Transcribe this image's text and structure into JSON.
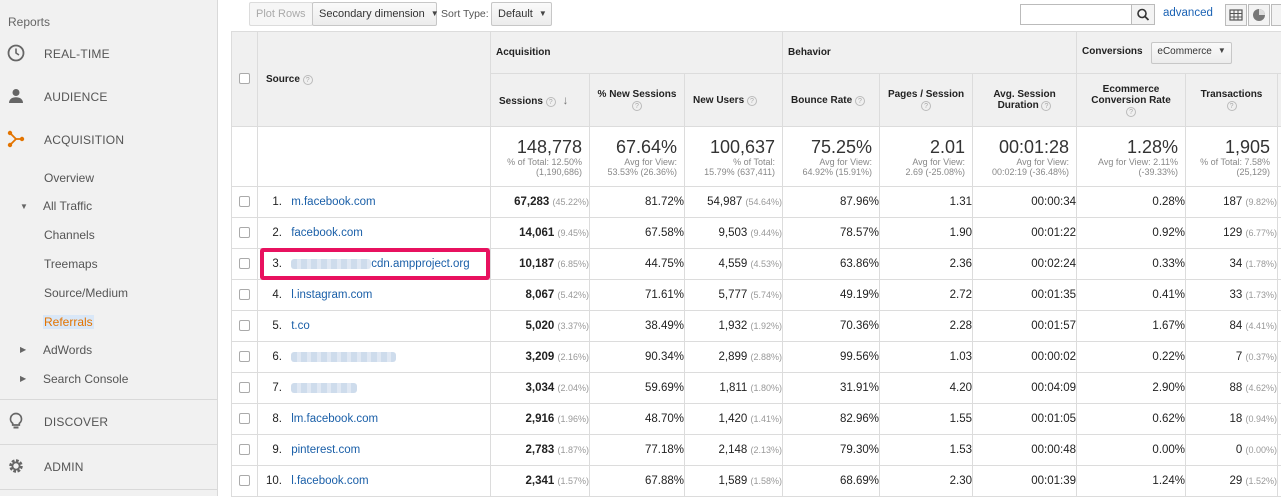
{
  "sidebar": {
    "reports_label": "Reports",
    "sections": [
      {
        "label": "REAL-TIME",
        "icon": "clock-icon"
      },
      {
        "label": "AUDIENCE",
        "icon": "person-icon"
      },
      {
        "label": "ACQUISITION",
        "icon": "acquisition-icon"
      }
    ],
    "acquisition_items": {
      "overview": "Overview",
      "all_traffic": "All Traffic",
      "channels": "Channels",
      "treemaps": "Treemaps",
      "source_medium": "Source/Medium",
      "referrals": "Referrals",
      "adwords": "AdWords",
      "search_console": "Search Console"
    },
    "discover": "DISCOVER",
    "admin": "ADMIN"
  },
  "toolbar": {
    "plot_rows": "Plot Rows",
    "secondary_dimension": "Secondary dimension",
    "sort_type_label": "Sort Type:",
    "sort_type_value": "Default",
    "search_value": "",
    "advanced": "advanced"
  },
  "table": {
    "groups": {
      "acquisition": "Acquisition",
      "behavior": "Behavior",
      "conversions": "Conversions",
      "conversions_select": "eCommerce"
    },
    "headers": {
      "source": "Source",
      "sessions": "Sessions",
      "new_sessions": "% New Sessions",
      "new_users": "New Users",
      "bounce_rate": "Bounce Rate",
      "pages_session": "Pages / Session",
      "avg_duration_1": "Avg. Session",
      "avg_duration_2": "Duration",
      "ecom_rate_1": "Ecommerce",
      "ecom_rate_2": "Conversion Rate",
      "transactions": "Transactions"
    },
    "totals": {
      "sessions": {
        "big": "148,778",
        "l1": "% of Total: 12.50%",
        "l2": "(1,190,686)"
      },
      "new_sessions": {
        "big": "67.64%",
        "l1": "Avg for View:",
        "l2": "53.53% (26.36%)"
      },
      "new_users": {
        "big": "100,637",
        "l1": "% of Total:",
        "l2": "15.79% (637,411)"
      },
      "bounce_rate": {
        "big": "75.25%",
        "l1": "Avg for View:",
        "l2": "64.92% (15.91%)"
      },
      "pages_session": {
        "big": "2.01",
        "l1": "Avg for View:",
        "l2": "2.69 (-25.08%)"
      },
      "avg_duration": {
        "big": "00:01:28",
        "l1": "Avg for View:",
        "l2": "00:02:19 (-36.48%)"
      },
      "ecom_rate": {
        "big": "1.28%",
        "l1": "Avg for View: 2.11%",
        "l2": "(-39.33%)"
      },
      "transactions": {
        "big": "1,905",
        "l1": "% of Total: 7.58%",
        "l2": "(25,129)"
      }
    },
    "rows": [
      {
        "n": "1.",
        "source": "m.facebook.com",
        "sessions": "67,283",
        "sessions_pct": "(45.22%)",
        "new_sessions": "81.72%",
        "new_users": "54,987",
        "new_users_pct": "(54.64%)",
        "bounce": "87.96%",
        "pages": "1.31",
        "duration": "00:00:34",
        "ecom": "0.28%",
        "tx": "187",
        "tx_pct": "(9.82%)"
      },
      {
        "n": "2.",
        "source": "facebook.com",
        "sessions": "14,061",
        "sessions_pct": "(9.45%)",
        "new_sessions": "67.58%",
        "new_users": "9,503",
        "new_users_pct": "(9.44%)",
        "bounce": "78.57%",
        "pages": "1.90",
        "duration": "00:01:22",
        "ecom": "0.92%",
        "tx": "129",
        "tx_pct": "(6.77%)"
      },
      {
        "n": "3.",
        "source": "cdn.ampproject.org",
        "sessions": "10,187",
        "sessions_pct": "(6.85%)",
        "new_sessions": "44.75%",
        "new_users": "4,559",
        "new_users_pct": "(4.53%)",
        "bounce": "63.86%",
        "pages": "2.36",
        "duration": "00:02:24",
        "ecom": "0.33%",
        "tx": "34",
        "tx_pct": "(1.78%)"
      },
      {
        "n": "4.",
        "source": "l.instagram.com",
        "sessions": "8,067",
        "sessions_pct": "(5.42%)",
        "new_sessions": "71.61%",
        "new_users": "5,777",
        "new_users_pct": "(5.74%)",
        "bounce": "49.19%",
        "pages": "2.72",
        "duration": "00:01:35",
        "ecom": "0.41%",
        "tx": "33",
        "tx_pct": "(1.73%)"
      },
      {
        "n": "5.",
        "source": "t.co",
        "sessions": "5,020",
        "sessions_pct": "(3.37%)",
        "new_sessions": "38.49%",
        "new_users": "1,932",
        "new_users_pct": "(1.92%)",
        "bounce": "70.36%",
        "pages": "2.28",
        "duration": "00:01:57",
        "ecom": "1.67%",
        "tx": "84",
        "tx_pct": "(4.41%)"
      },
      {
        "n": "6.",
        "source": "",
        "sessions": "3,209",
        "sessions_pct": "(2.16%)",
        "new_sessions": "90.34%",
        "new_users": "2,899",
        "new_users_pct": "(2.88%)",
        "bounce": "99.56%",
        "pages": "1.03",
        "duration": "00:00:02",
        "ecom": "0.22%",
        "tx": "7",
        "tx_pct": "(0.37%)"
      },
      {
        "n": "7.",
        "source": "",
        "sessions": "3,034",
        "sessions_pct": "(2.04%)",
        "new_sessions": "59.69%",
        "new_users": "1,811",
        "new_users_pct": "(1.80%)",
        "bounce": "31.91%",
        "pages": "4.20",
        "duration": "00:04:09",
        "ecom": "2.90%",
        "tx": "88",
        "tx_pct": "(4.62%)"
      },
      {
        "n": "8.",
        "source": "lm.facebook.com",
        "sessions": "2,916",
        "sessions_pct": "(1.96%)",
        "new_sessions": "48.70%",
        "new_users": "1,420",
        "new_users_pct": "(1.41%)",
        "bounce": "82.96%",
        "pages": "1.55",
        "duration": "00:01:05",
        "ecom": "0.62%",
        "tx": "18",
        "tx_pct": "(0.94%)"
      },
      {
        "n": "9.",
        "source": "pinterest.com",
        "sessions": "2,783",
        "sessions_pct": "(1.87%)",
        "new_sessions": "77.18%",
        "new_users": "2,148",
        "new_users_pct": "(2.13%)",
        "bounce": "79.30%",
        "pages": "1.53",
        "duration": "00:00:48",
        "ecom": "0.00%",
        "tx": "0",
        "tx_pct": "(0.00%)"
      },
      {
        "n": "10.",
        "source": "l.facebook.com",
        "sessions": "2,341",
        "sessions_pct": "(1.57%)",
        "new_sessions": "67.88%",
        "new_users": "1,589",
        "new_users_pct": "(1.58%)",
        "bounce": "68.69%",
        "pages": "2.30",
        "duration": "00:01:39",
        "ecom": "1.24%",
        "tx": "29",
        "tx_pct": "(1.52%)"
      }
    ]
  },
  "colors": {
    "link": "#1a5fa8",
    "active": "#e37400",
    "highlight": "#e8115f"
  }
}
